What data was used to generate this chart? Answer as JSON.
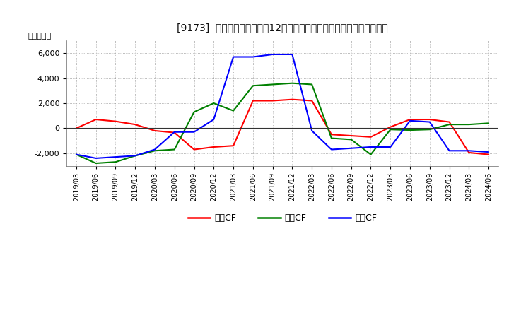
{
  "title": "[9173]  キャッシュフローの12か月移動合計の対前年同期増減額の推移",
  "ylabel": "（百万円）",
  "background_color": "#ffffff",
  "grid_color": "#aaaaaa",
  "ylim": [
    -3000,
    7000
  ],
  "yticks": [
    -2000,
    0,
    2000,
    4000,
    6000
  ],
  "x_labels": [
    "2019/03",
    "2019/06",
    "2019/09",
    "2019/12",
    "2020/03",
    "2020/06",
    "2020/09",
    "2020/12",
    "2021/03",
    "2021/06",
    "2021/09",
    "2021/12",
    "2022/03",
    "2022/06",
    "2022/09",
    "2022/12",
    "2023/03",
    "2023/06",
    "2023/09",
    "2023/12",
    "2024/03",
    "2024/06"
  ],
  "series": {
    "営業CF": {
      "color": "#ff0000",
      "values": [
        0,
        700,
        550,
        300,
        -200,
        -350,
        -1700,
        -1500,
        -1400,
        2200,
        2200,
        2300,
        2200,
        -500,
        -600,
        -700,
        100,
        700,
        700,
        500,
        -1950,
        -2100
      ]
    },
    "投賄CF": {
      "color": "#008000",
      "values": [
        -2100,
        -2800,
        -2700,
        -2200,
        -1800,
        -1700,
        1300,
        2000,
        1400,
        3400,
        3500,
        3600,
        3500,
        -800,
        -900,
        -2100,
        -100,
        -150,
        -100,
        300,
        300,
        400
      ]
    },
    "フリCF": {
      "color": "#0000ff",
      "values": [
        -2100,
        -2400,
        -2300,
        -2200,
        -1700,
        -300,
        -300,
        700,
        5700,
        5700,
        5900,
        5900,
        -200,
        -1700,
        -1600,
        -1500,
        -1500,
        600,
        500,
        -1800,
        -1800,
        -1900
      ]
    }
  },
  "legend_labels": [
    "営業CF",
    "投賄CF",
    "フリCF"
  ],
  "legend_colors": [
    "#ff0000",
    "#008000",
    "#0000ff"
  ]
}
